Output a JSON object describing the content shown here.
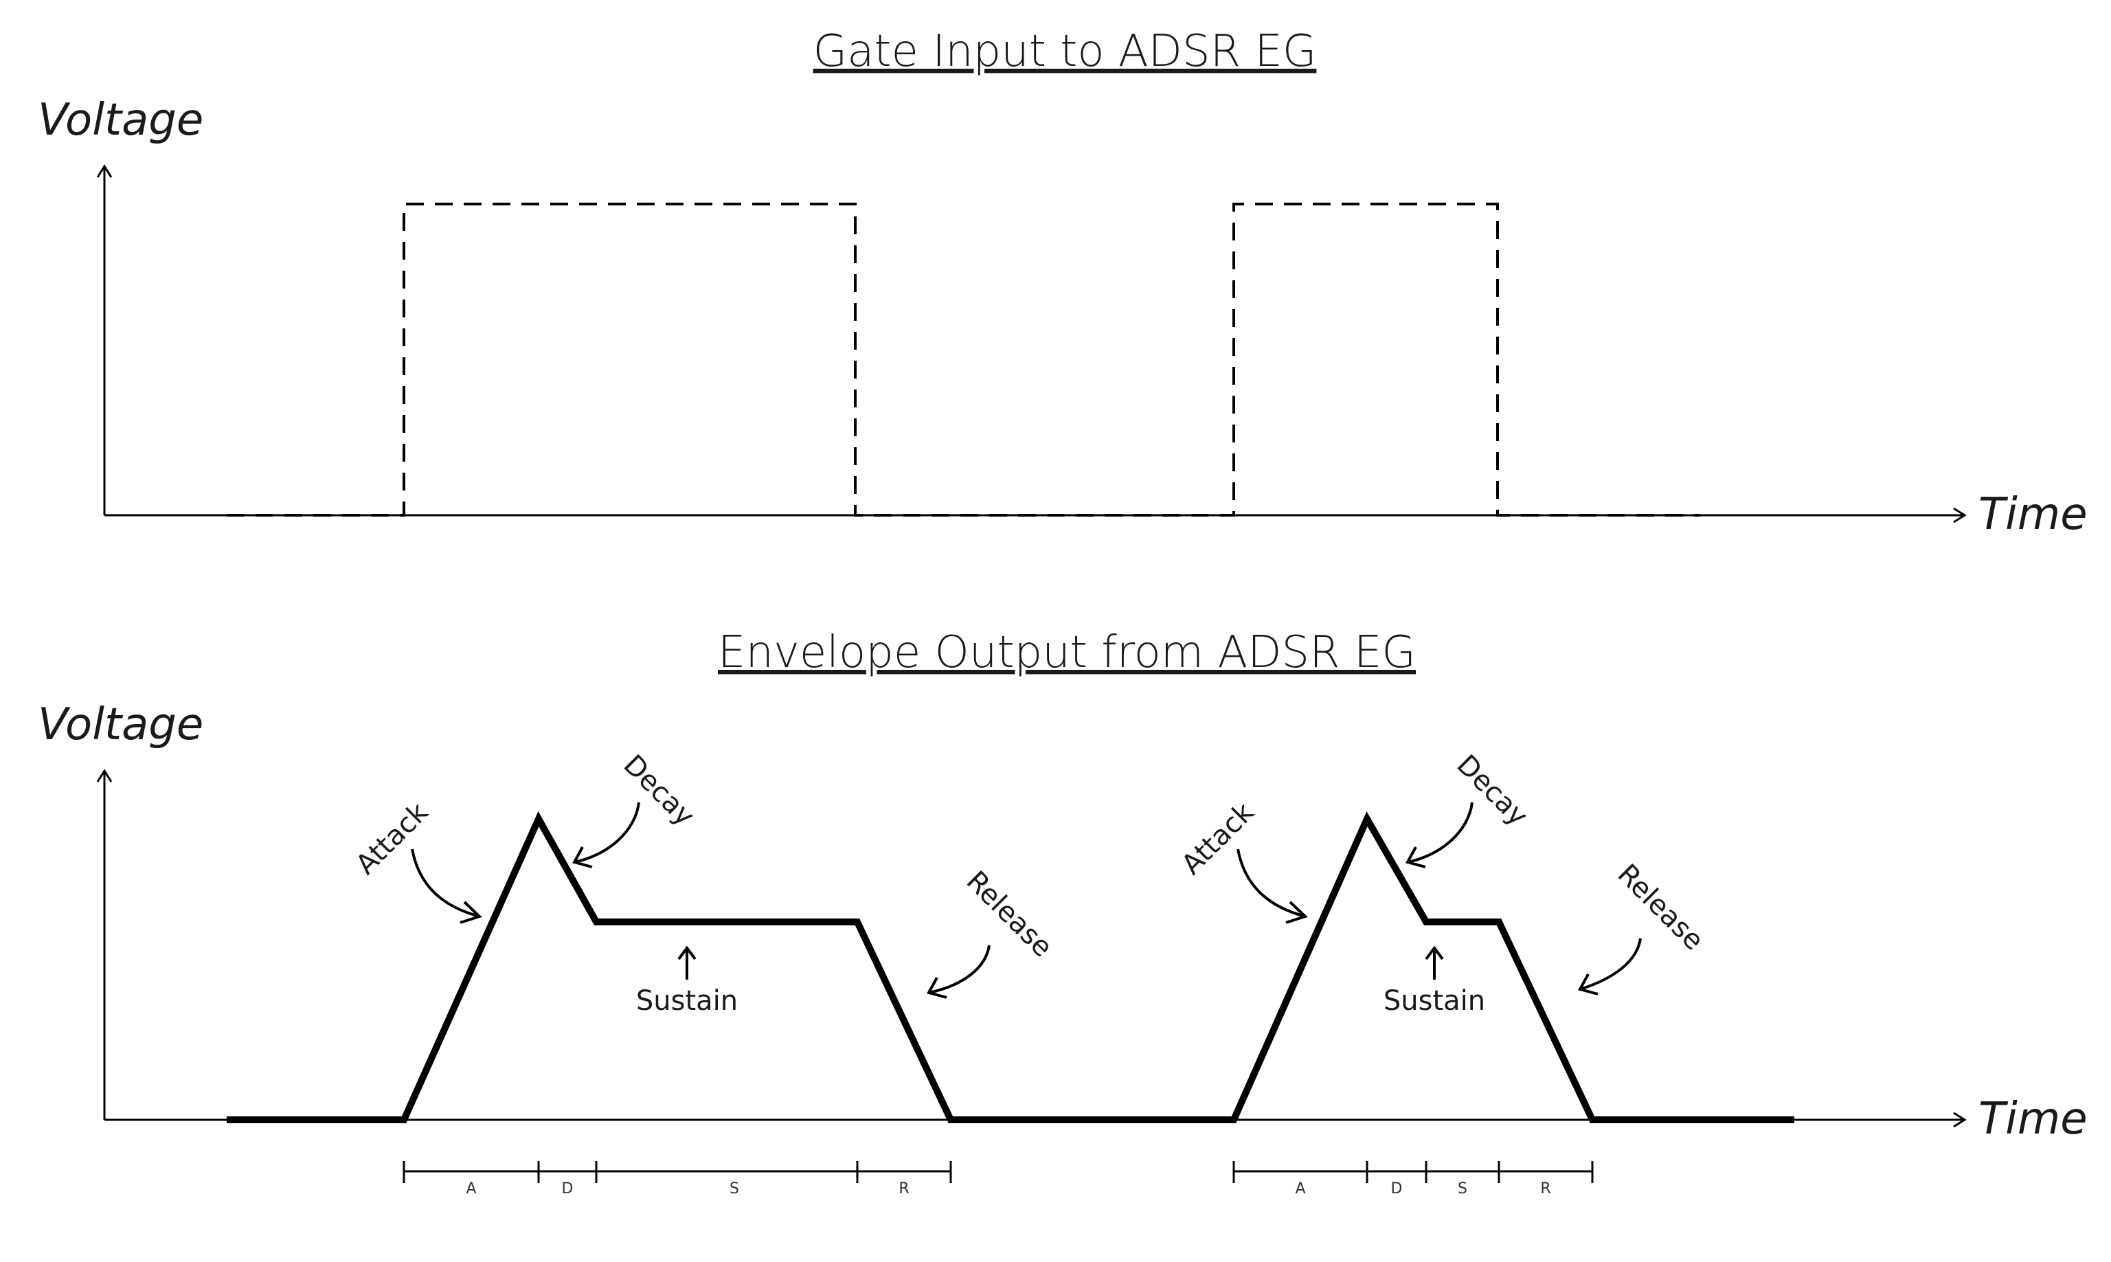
{
  "colors": {
    "ink": "#000000",
    "text": "#1a1a1a",
    "background": "#ffffff"
  },
  "top_panel": {
    "title": "Gate Input to ADSR EG",
    "y_label": "Voltage",
    "x_label": "Time"
  },
  "bottom_panel": {
    "title": "Envelope Output from ADSR EG",
    "y_label": "Voltage",
    "x_label": "Time"
  },
  "envelope_1": {
    "attack_label": "Attack",
    "decay_label": "Decay",
    "sustain_label": "Sustain",
    "release_label": "Release",
    "segments": [
      "A",
      "D",
      "S",
      "R"
    ]
  },
  "envelope_2": {
    "attack_label": "Attack",
    "decay_label": "Decay",
    "sustain_label": "Sustain",
    "release_label": "Release",
    "segments": [
      "A",
      "D",
      "S",
      "R"
    ]
  },
  "icons": {
    "axis_arrow": "arrow-head-icon",
    "annotation_arrow": "curved-arrow-icon",
    "sustain_arrow": "up-arrow-icon"
  }
}
